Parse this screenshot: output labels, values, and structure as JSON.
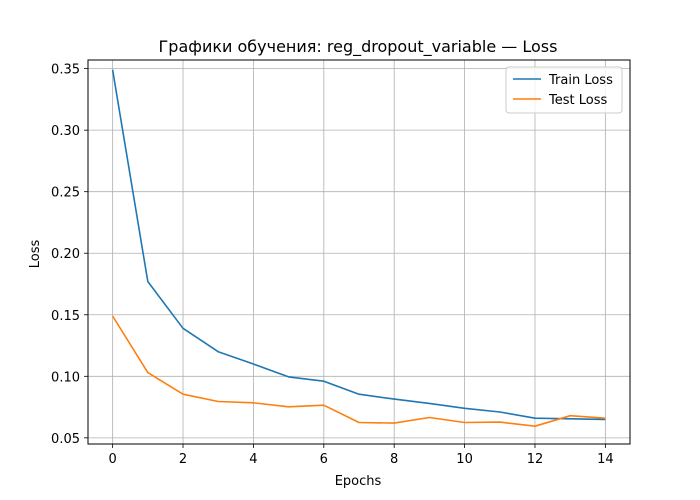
{
  "chart_data": {
    "type": "line",
    "title": "Графики обучения: reg_dropout_variable — Loss",
    "xlabel": "Epochs",
    "ylabel": "Loss",
    "x": [
      0,
      1,
      2,
      3,
      4,
      5,
      6,
      7,
      8,
      9,
      10,
      11,
      12,
      13,
      14
    ],
    "xticks": [
      "0",
      "2",
      "4",
      "6",
      "8",
      "10",
      "12",
      "14"
    ],
    "yticks": [
      "0.05",
      "0.10",
      "0.15",
      "0.20",
      "0.25",
      "0.30",
      "0.35"
    ],
    "xlim": [
      -0.7,
      14.7
    ],
    "ylim": [
      0.045,
      0.357
    ],
    "grid": true,
    "legend_position": "top-right",
    "series": [
      {
        "name": "Train Loss",
        "color": "#1f77b4",
        "values": [
          0.349,
          0.177,
          0.139,
          0.12,
          0.11,
          0.0995,
          0.096,
          0.0855,
          0.0815,
          0.078,
          0.074,
          0.071,
          0.066,
          0.0655,
          0.065
        ]
      },
      {
        "name": "Test Loss",
        "color": "#ff7f0e",
        "values": [
          0.149,
          0.103,
          0.0855,
          0.0795,
          0.0785,
          0.0752,
          0.0765,
          0.0625,
          0.062,
          0.0665,
          0.0625,
          0.0628,
          0.0595,
          0.068,
          0.066
        ]
      }
    ]
  }
}
